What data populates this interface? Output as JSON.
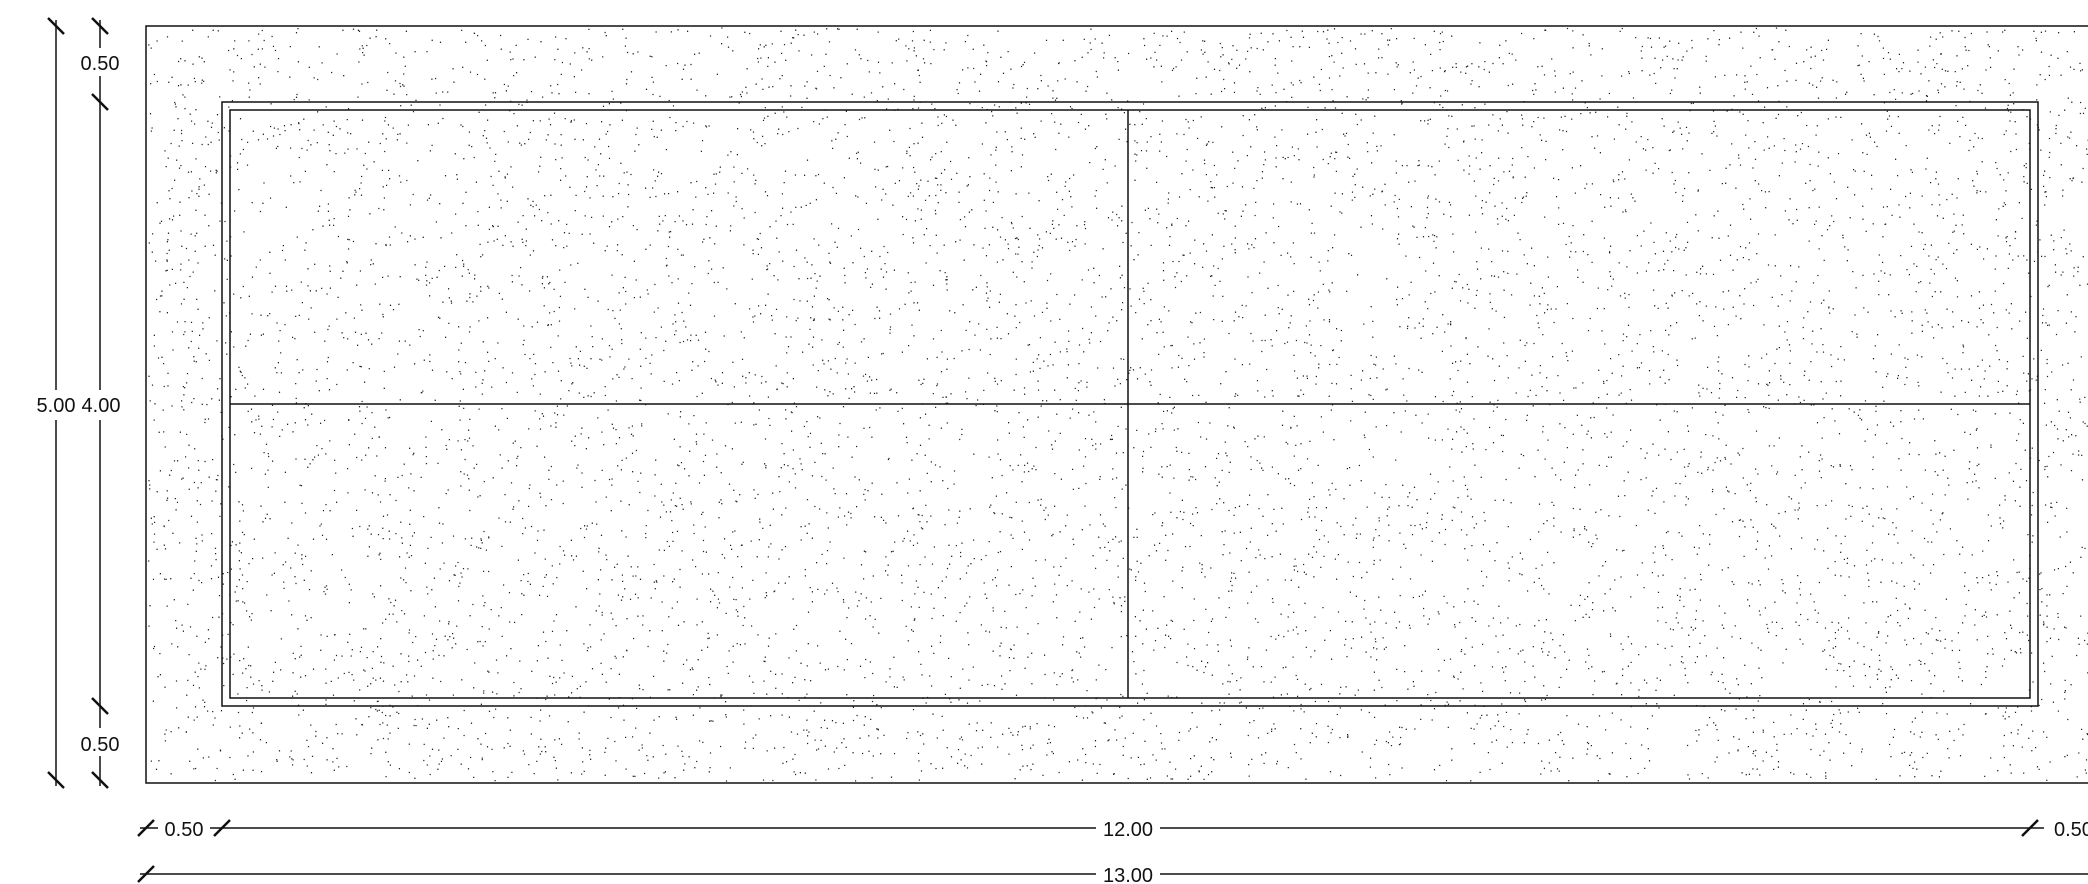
{
  "dimensions": {
    "left_outer": {
      "top_margin": "0.50",
      "total": "5.00",
      "bottom_margin": "0.50"
    },
    "left_inner": {
      "inner": "4.00"
    },
    "bottom_row1": {
      "left_margin": "0.50",
      "inner": "12.00",
      "right_margin": "0.50"
    },
    "bottom_row2": {
      "total": "13.00"
    }
  },
  "colors": {
    "line": "#111111",
    "stipple": "#222222",
    "background": "#ffffff"
  }
}
